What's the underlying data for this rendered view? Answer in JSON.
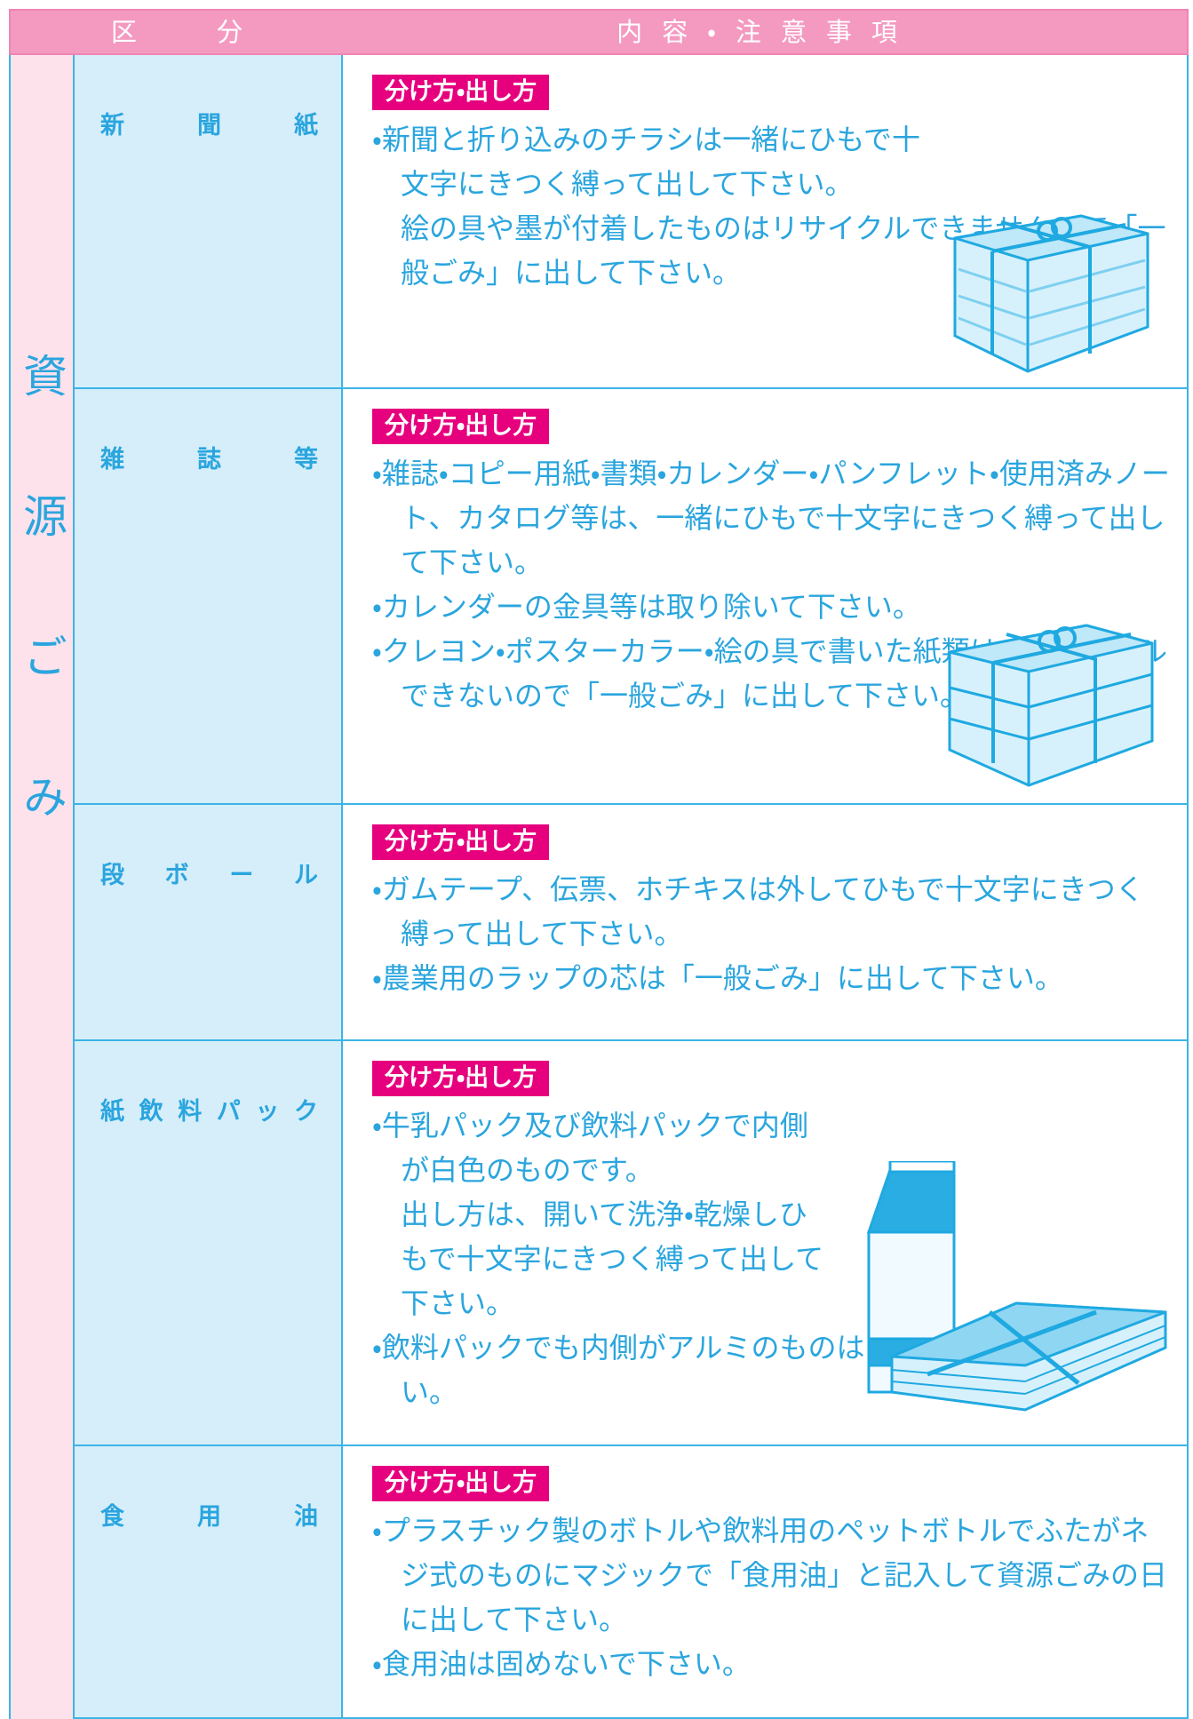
{
  "header": {
    "columns": [
      "区分",
      "内容・注意事項"
    ]
  },
  "section": {
    "label": "資源ごみ",
    "rows": [
      {
        "category": "新聞紙",
        "heading": "分け方・出し方",
        "items": [
          "・新聞と折り込みのチラシは一緒にひもで十文字にきつく縛って出して下さい。",
          "絵の具や墨が付着したものはリサイクルできませんので「一般ごみ」に出して下さい。"
        ]
      },
      {
        "category": "雑誌等",
        "heading": "分け方・出し方",
        "items": [
          "・雑誌・コピー用紙・書類・カレンダー・パンフレット・使用済みノート、カタログ等は、一緒にひもで十文字にきつく縛って出して下さい。",
          "・カレンダーの金具等は取り除いて下さい。",
          "・クレヨン・ポスターカラー・絵の具で書いた紙類は、リサイクルできないので「一般ごみ」に出して下さい。"
        ]
      },
      {
        "category": "段ボール",
        "heading": "分け方・出し方",
        "items": [
          "・ガムテープ、伝票、ホチキスは外してひもで十文字にきつく縛って出して下さい。",
          "・農業用のラップの芯は「一般ごみ」に出して下さい。"
        ]
      },
      {
        "category": "紙飲料パック",
        "heading": "分け方・出し方",
        "items": [
          "・牛乳パック及び飲料パックで内側が白色のものです。",
          "出し方は、開いて洗浄・乾燥しひもで十文字にきつく縛って出して下さい。",
          "・飲料パックでも内側がアルミのものは「紙類」に出して下さい。"
        ]
      },
      {
        "category": "食用油",
        "heading": "分け方・出し方",
        "items": [
          "・プラスチック製のボトルや飲料用のペットボトルでふたがネジ式のものにマジックで「食用油」と記入して資源ごみの日に出して下さい。",
          "・食用油は固めないで下さい。"
        ]
      }
    ]
  }
}
